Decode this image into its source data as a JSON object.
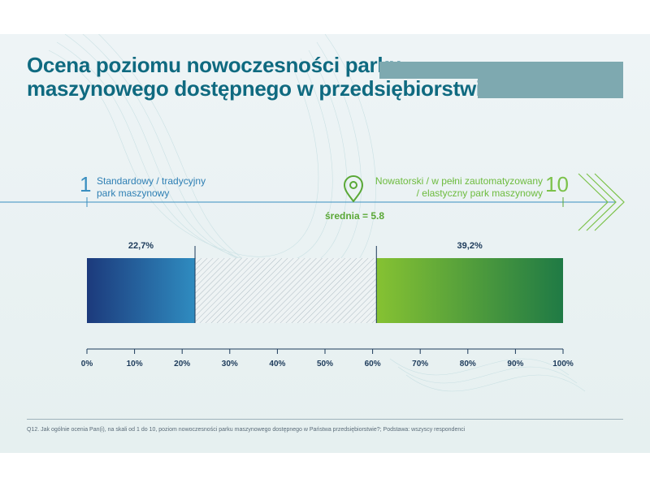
{
  "title": {
    "line1": "Ocena poziomu nowoczesności parku",
    "line2": "maszynowego dostępnego w przedsiębiorstwie"
  },
  "scale": {
    "left_number": "1",
    "left_label_line1": "Standardowy / tradycyjny",
    "left_label_line2": "park maszynowy",
    "right_number": "10",
    "right_label_line1": "Nowatorski / w pełni zautomatyzowany",
    "right_label_line2": "/ elastyczny park maszynowy",
    "mean_label": "średnia = 5.8",
    "mean_value": 5.8,
    "icon": "location-pin-icon"
  },
  "chart_data": {
    "type": "bar",
    "orientation": "horizontal-stacked",
    "segments": [
      {
        "start": 0,
        "end": 22.7,
        "label": "22,7%",
        "style": "blue-gradient"
      },
      {
        "start": 22.7,
        "end": 60.8,
        "label": "",
        "style": "hatched"
      },
      {
        "start": 60.8,
        "end": 100,
        "label": "39,2%",
        "style": "green-gradient"
      }
    ],
    "xlim": [
      0,
      100
    ],
    "ticks": [
      "0%",
      "10%",
      "20%",
      "30%",
      "40%",
      "50%",
      "60%",
      "70%",
      "80%",
      "90%",
      "100%"
    ],
    "tick_values": [
      0,
      10,
      20,
      30,
      40,
      50,
      60,
      70,
      80,
      90,
      100
    ]
  },
  "colors": {
    "title": "#0f6a80",
    "axis": "#1c3a5a",
    "blue_start": "#1c3a7c",
    "blue_end": "#2f8cc0",
    "green_start": "#86c232",
    "green_end": "#1f7a45",
    "scale_line": "#3a8fc0",
    "accent_green": "#5aa836"
  },
  "footnote": "Q12. Jak ogólnie ocenia Pan(i), na skali od 1 do 10, poziom nowoczesności parku maszynowego dostępnego w Państwa przedsiębiorstwie?; Podstawa: wszyscy respondenci"
}
